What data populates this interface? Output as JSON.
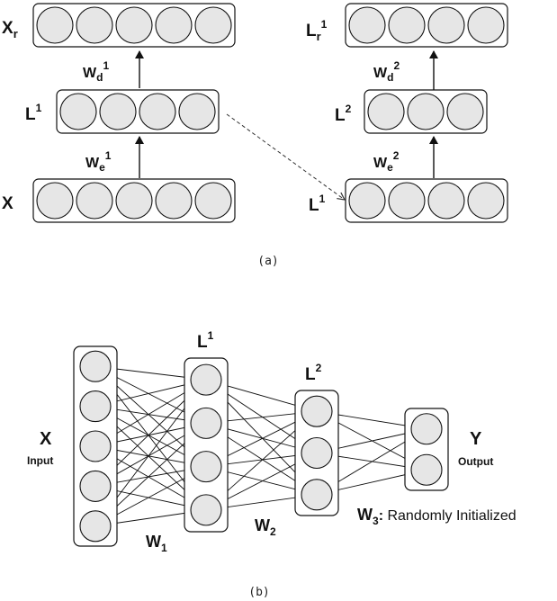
{
  "panel_a": {
    "caption": "(a)",
    "left": {
      "bottom_label": "X",
      "middle_label": "L",
      "middle_sup": "1",
      "top_label": "X",
      "top_sub": "r",
      "encoder_weight": "W",
      "encoder_weight_sub": "e",
      "encoder_weight_sup": "1",
      "decoder_weight": "W",
      "decoder_weight_sub": "d",
      "decoder_weight_sup": "1",
      "bottom_units": 5,
      "middle_units": 4,
      "top_units": 5
    },
    "right": {
      "bottom_label": "L",
      "bottom_sup": "1",
      "middle_label": "L",
      "middle_sup": "2",
      "top_label": "L",
      "top_sub": "r",
      "top_sup": "1",
      "encoder_weight": "W",
      "encoder_weight_sub": "e",
      "encoder_weight_sup": "2",
      "decoder_weight": "W",
      "decoder_weight_sub": "d",
      "decoder_weight_sup": "2",
      "bottom_units": 4,
      "middle_units": 3,
      "top_units": 4
    }
  },
  "panel_b": {
    "caption": "(b)",
    "input_label": "X",
    "input_sublabel": "Input",
    "layer1_label": "L",
    "layer1_sup": "1",
    "layer2_label": "L",
    "layer2_sup": "2",
    "output_label": "Y",
    "output_sublabel": "Output",
    "w1_label": "W",
    "w1_sub": "1",
    "w2_label": "W",
    "w2_sub": "2",
    "w3_label": "W",
    "w3_sub": "3",
    "w3_note": ": Randomly Initialized",
    "input_units": 5,
    "layer1_units": 4,
    "layer2_units": 3,
    "output_units": 2
  }
}
